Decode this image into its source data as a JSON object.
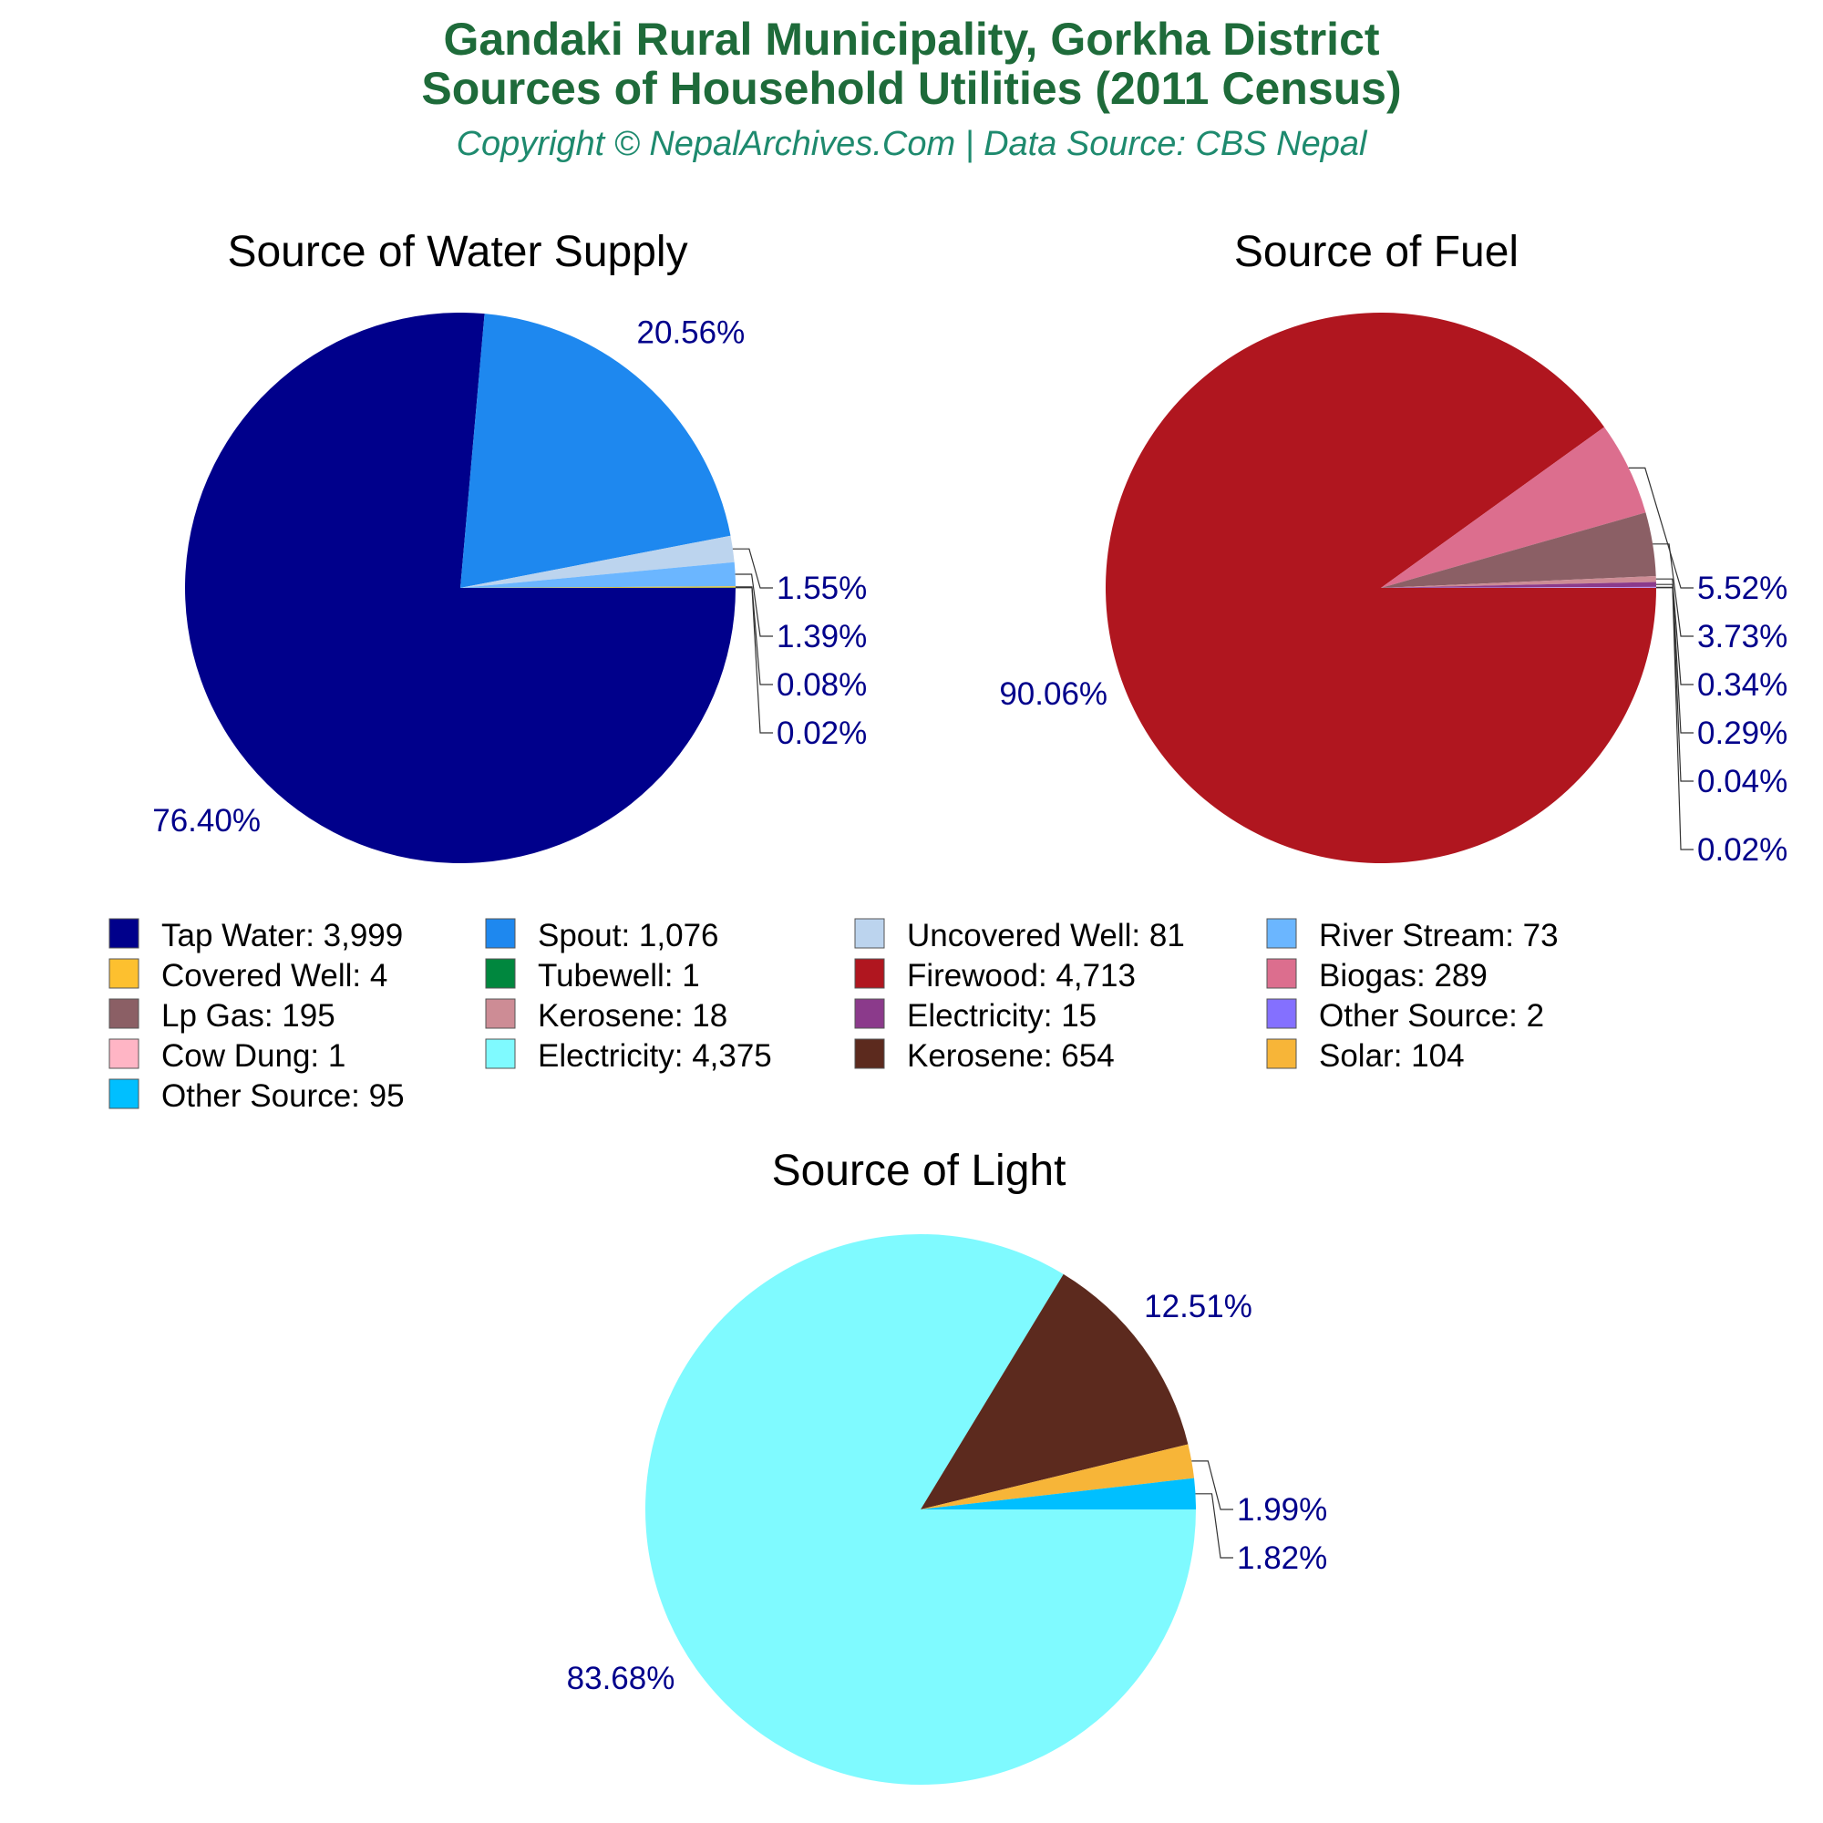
{
  "header": {
    "title_line1": "Gandaki Rural Municipality, Gorkha District",
    "title_line2": "Sources of Household Utilities (2011 Census)",
    "subtitle": "Copyright © NepalArchives.Com | Data Source: CBS Nepal"
  },
  "chart_data": [
    {
      "type": "pie",
      "title": "Source of Water Supply",
      "start_angle_deg": 0,
      "direction": "clockwise",
      "slices": [
        {
          "name": "Tap Water",
          "value": 3999,
          "label": "76.40%",
          "color": "#00008b"
        },
        {
          "name": "Spout",
          "value": 1076,
          "label": "20.56%",
          "color": "#1e88ef"
        },
        {
          "name": "Uncovered Well",
          "value": 81,
          "label": "1.55%",
          "color": "#bcd4ee"
        },
        {
          "name": "River Stream",
          "value": 73,
          "label": "1.39%",
          "color": "#6bb6ff"
        },
        {
          "name": "Covered Well",
          "value": 4,
          "label": "0.08%",
          "color": "#fdc02f"
        },
        {
          "name": "Tubewell",
          "value": 1,
          "label": "0.02%",
          "color": "#00873e"
        }
      ]
    },
    {
      "type": "pie",
      "title": "Source of Fuel",
      "start_angle_deg": 0,
      "direction": "clockwise",
      "slices": [
        {
          "name": "Firewood",
          "value": 4713,
          "label": "90.06%",
          "color": "#b0161f"
        },
        {
          "name": "Biogas",
          "value": 289,
          "label": "5.52%",
          "color": "#dc6e8e"
        },
        {
          "name": "Lp Gas",
          "value": 195,
          "label": "3.73%",
          "color": "#8b5f65"
        },
        {
          "name": "Kerosene",
          "value": 18,
          "label": "0.34%",
          "color": "#cd8c95"
        },
        {
          "name": "Electricity",
          "value": 15,
          "label": "0.29%",
          "color": "#8b3a8b"
        },
        {
          "name": "Other Source",
          "value": 2,
          "label": "0.04%",
          "color": "#8470ff"
        },
        {
          "name": "Cow Dung",
          "value": 1,
          "label": "0.02%",
          "color": "#ffb5c5"
        }
      ]
    },
    {
      "type": "pie",
      "title": "Source of Light",
      "start_angle_deg": 0,
      "direction": "clockwise",
      "slices": [
        {
          "name": "Electricity",
          "value": 4375,
          "label": "83.68%",
          "color": "#7ffaff"
        },
        {
          "name": "Kerosene",
          "value": 654,
          "label": "12.51%",
          "color": "#5c2a1e"
        },
        {
          "name": "Solar",
          "value": 104,
          "label": "1.99%",
          "color": "#f7b538"
        },
        {
          "name": "Other Source",
          "value": 95,
          "label": "1.82%",
          "color": "#00bfff"
        }
      ]
    }
  ],
  "legend": {
    "columns": 4,
    "items": [
      {
        "text": "Tap Water: 3,999",
        "color": "#00008b"
      },
      {
        "text": "Spout: 1,076",
        "color": "#1e88ef"
      },
      {
        "text": "Uncovered Well: 81",
        "color": "#bcd4ee"
      },
      {
        "text": "River Stream: 73",
        "color": "#6bb6ff"
      },
      {
        "text": "Covered Well: 4",
        "color": "#fdc02f"
      },
      {
        "text": "Tubewell: 1",
        "color": "#00873e"
      },
      {
        "text": "Firewood: 4,713",
        "color": "#b0161f"
      },
      {
        "text": "Biogas: 289",
        "color": "#dc6e8e"
      },
      {
        "text": "Lp Gas: 195",
        "color": "#8b5f65"
      },
      {
        "text": "Kerosene: 18",
        "color": "#cd8c95"
      },
      {
        "text": "Electricity: 15",
        "color": "#8b3a8b"
      },
      {
        "text": "Other Source: 2",
        "color": "#8470ff"
      },
      {
        "text": "Cow Dung: 1",
        "color": "#ffb5c5"
      },
      {
        "text": "Electricity: 4,375",
        "color": "#7ffaff"
      },
      {
        "text": "Kerosene: 654",
        "color": "#5c2a1e"
      },
      {
        "text": "Solar: 104",
        "color": "#f7b538"
      },
      {
        "text": "Other Source: 95",
        "color": "#00bfff"
      }
    ]
  }
}
